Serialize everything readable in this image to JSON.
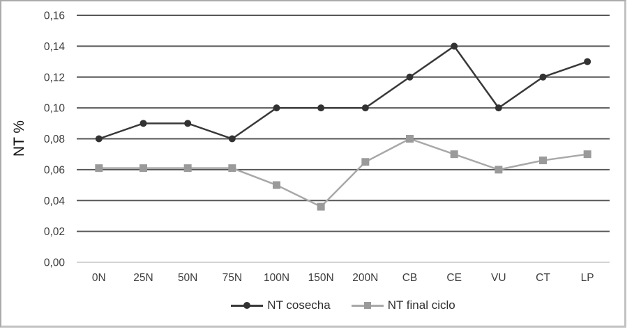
{
  "chart_data": {
    "type": "line",
    "title": "",
    "ylabel": "NT %",
    "xlabel": "",
    "ylim": [
      0,
      0.16
    ],
    "ytick_values": [
      0,
      0.02,
      0.04,
      0.06,
      0.08,
      0.1,
      0.12,
      0.14,
      0.16
    ],
    "ytick_labels": [
      "0,00",
      "0,02",
      "0,04",
      "0,06",
      "0,08",
      "0,10",
      "0,12",
      "0,14",
      "0,16"
    ],
    "categories": [
      "0N",
      "25N",
      "50N",
      "75N",
      "100N",
      "150N",
      "200N",
      "CB",
      "CE",
      "VU",
      "CT",
      "LP"
    ],
    "series": [
      {
        "name": "NT cosecha",
        "marker": "circle",
        "line_color": "#383838",
        "marker_color": "#323232",
        "values": [
          0.08,
          0.09,
          0.09,
          0.08,
          0.1,
          0.1,
          0.1,
          0.12,
          0.14,
          0.1,
          0.12,
          0.13
        ]
      },
      {
        "name": "NT final ciclo",
        "marker": "square",
        "line_color": "#a8a8a8",
        "marker_color": "#9a9a9a",
        "values": [
          0.061,
          0.061,
          0.061,
          0.061,
          0.05,
          0.036,
          0.065,
          0.08,
          0.07,
          0.06,
          0.066,
          0.07
        ]
      }
    ],
    "grid": "horizontal",
    "gridline_color": "#575757",
    "zeroline_color": "#c6c6c6",
    "tick_text_color": "#3d3d3d",
    "legend_position": "bottom"
  }
}
